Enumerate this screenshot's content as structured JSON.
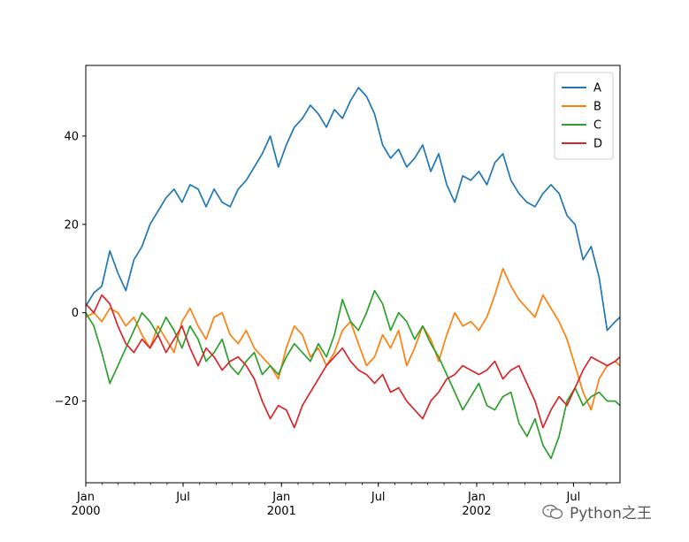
{
  "chart_data": {
    "type": "line",
    "title": "",
    "xlabel": "",
    "ylabel": "",
    "x_range": [
      "2000-01-01",
      "2002-09-26"
    ],
    "ylim": [
      -38.5,
      56
    ],
    "yticks": [
      -20,
      0,
      20,
      40
    ],
    "ytick_labels": [
      "−20",
      "0",
      "20",
      "40"
    ],
    "xticks": [
      {
        "date": "2000-01-01",
        "label": [
          "Jan",
          "2000"
        ]
      },
      {
        "date": "2000-07-01",
        "label": [
          "Jul"
        ]
      },
      {
        "date": "2001-01-01",
        "label": [
          "Jan",
          "2001"
        ]
      },
      {
        "date": "2001-07-01",
        "label": [
          "Jul"
        ]
      },
      {
        "date": "2002-01-01",
        "label": [
          "Jan",
          "2002"
        ]
      },
      {
        "date": "2002-07-01",
        "label": [
          "Jul"
        ]
      }
    ],
    "grid": false,
    "legend_position": "top-right",
    "series": [
      {
        "name": "A",
        "color": "#1f77b4",
        "x": [
          "2000-01-01",
          "2000-01-16",
          "2000-01-31",
          "2000-02-15",
          "2000-03-01",
          "2000-03-16",
          "2000-03-31",
          "2000-04-15",
          "2000-04-30",
          "2000-05-15",
          "2000-05-30",
          "2000-06-14",
          "2000-06-29",
          "2000-07-14",
          "2000-07-29",
          "2000-08-13",
          "2000-08-28",
          "2000-09-12",
          "2000-09-27",
          "2000-10-12",
          "2000-10-27",
          "2000-11-11",
          "2000-11-26",
          "2000-12-11",
          "2000-12-26",
          "2001-01-10",
          "2001-01-25",
          "2001-02-09",
          "2001-02-24",
          "2001-03-11",
          "2001-03-26",
          "2001-04-10",
          "2001-04-25",
          "2001-05-10",
          "2001-05-25",
          "2001-06-09",
          "2001-06-24",
          "2001-07-09",
          "2001-07-24",
          "2001-08-08",
          "2001-08-23",
          "2001-09-07",
          "2001-09-22",
          "2001-10-07",
          "2001-10-22",
          "2001-11-06",
          "2001-11-21",
          "2001-12-06",
          "2001-12-21",
          "2002-01-05",
          "2002-01-20",
          "2002-02-04",
          "2002-02-19",
          "2002-03-06",
          "2002-03-21",
          "2002-04-05",
          "2002-04-20",
          "2002-05-05",
          "2002-05-20",
          "2002-06-04",
          "2002-06-19",
          "2002-07-04",
          "2002-07-19",
          "2002-08-03",
          "2002-08-18",
          "2002-09-02",
          "2002-09-17",
          "2002-09-26"
        ],
        "y": [
          1.5,
          4.5,
          6,
          14,
          9,
          5,
          12,
          15,
          20,
          23,
          26,
          28,
          25,
          29,
          28,
          24,
          28,
          25,
          24,
          28,
          30,
          33,
          36,
          40,
          33,
          38,
          42,
          44,
          47,
          45,
          42,
          46,
          44,
          48,
          51,
          49,
          45,
          38,
          35,
          37,
          33,
          35,
          38,
          32,
          36,
          29,
          25,
          31,
          30,
          32,
          29,
          34,
          36,
          30,
          27,
          25,
          24,
          27,
          29,
          27,
          22,
          20,
          12,
          15,
          8,
          -4,
          -2,
          -1
        ]
      },
      {
        "name": "B",
        "color": "#ff7f0e",
        "x": [
          "2000-01-01",
          "2000-01-16",
          "2000-01-31",
          "2000-02-15",
          "2000-03-01",
          "2000-03-16",
          "2000-03-31",
          "2000-04-15",
          "2000-04-30",
          "2000-05-15",
          "2000-05-30",
          "2000-06-14",
          "2000-06-29",
          "2000-07-14",
          "2000-07-29",
          "2000-08-13",
          "2000-08-28",
          "2000-09-12",
          "2000-09-27",
          "2000-10-12",
          "2000-10-27",
          "2000-11-11",
          "2000-11-26",
          "2000-12-11",
          "2000-12-26",
          "2001-01-10",
          "2001-01-25",
          "2001-02-09",
          "2001-02-24",
          "2001-03-11",
          "2001-03-26",
          "2001-04-10",
          "2001-04-25",
          "2001-05-10",
          "2001-05-25",
          "2001-06-09",
          "2001-06-24",
          "2001-07-09",
          "2001-07-24",
          "2001-08-08",
          "2001-08-23",
          "2001-09-07",
          "2001-09-22",
          "2001-10-07",
          "2001-10-22",
          "2001-11-06",
          "2001-11-21",
          "2001-12-06",
          "2001-12-21",
          "2002-01-05",
          "2002-01-20",
          "2002-02-04",
          "2002-02-19",
          "2002-03-06",
          "2002-03-21",
          "2002-04-05",
          "2002-04-20",
          "2002-05-05",
          "2002-05-20",
          "2002-06-04",
          "2002-06-19",
          "2002-07-04",
          "2002-07-19",
          "2002-08-03",
          "2002-08-18",
          "2002-09-02",
          "2002-09-17",
          "2002-09-26"
        ],
        "y": [
          -1,
          0,
          -2,
          1,
          0,
          -3,
          -1,
          -5,
          -8,
          -3,
          -6,
          -9,
          -2,
          1,
          -3,
          -6,
          -1,
          0,
          -5,
          -7,
          -4,
          -8,
          -10,
          -12,
          -15,
          -8,
          -3,
          -5,
          -10,
          -8,
          -12,
          -9,
          -4,
          -2,
          -7,
          -12,
          -10,
          -5,
          -8,
          -4,
          -12,
          -8,
          -3,
          -6,
          -11,
          -5,
          0,
          -3,
          -2,
          -4,
          -1,
          4,
          10,
          6,
          3,
          1,
          -1,
          4,
          1,
          -2,
          -6,
          -12,
          -18,
          -22,
          -15,
          -12,
          -11,
          -12
        ]
      },
      {
        "name": "C",
        "color": "#2ca02c",
        "x": [
          "2000-01-01",
          "2000-01-16",
          "2000-01-31",
          "2000-02-15",
          "2000-03-01",
          "2000-03-16",
          "2000-03-31",
          "2000-04-15",
          "2000-04-30",
          "2000-05-15",
          "2000-05-30",
          "2000-06-14",
          "2000-06-29",
          "2000-07-14",
          "2000-07-29",
          "2000-08-13",
          "2000-08-28",
          "2000-09-12",
          "2000-09-27",
          "2000-10-12",
          "2000-10-27",
          "2000-11-11",
          "2000-11-26",
          "2000-12-11",
          "2000-12-26",
          "2001-01-10",
          "2001-01-25",
          "2001-02-09",
          "2001-02-24",
          "2001-03-11",
          "2001-03-26",
          "2001-04-10",
          "2001-04-25",
          "2001-05-10",
          "2001-05-25",
          "2001-06-09",
          "2001-06-24",
          "2001-07-09",
          "2001-07-24",
          "2001-08-08",
          "2001-08-23",
          "2001-09-07",
          "2001-09-22",
          "2001-10-07",
          "2001-10-22",
          "2001-11-06",
          "2001-11-21",
          "2001-12-06",
          "2001-12-21",
          "2002-01-05",
          "2002-01-20",
          "2002-02-04",
          "2002-02-19",
          "2002-03-06",
          "2002-03-21",
          "2002-04-05",
          "2002-04-20",
          "2002-05-05",
          "2002-05-20",
          "2002-06-04",
          "2002-06-19",
          "2002-07-04",
          "2002-07-19",
          "2002-08-03",
          "2002-08-18",
          "2002-09-02",
          "2002-09-17",
          "2002-09-26"
        ],
        "y": [
          0,
          -3,
          -9,
          -16,
          -12,
          -8,
          -4,
          0,
          -2,
          -5,
          -1,
          -4,
          -8,
          -3,
          -6,
          -11,
          -9,
          -6,
          -12,
          -14,
          -11,
          -9,
          -14,
          -12,
          -14,
          -10,
          -7,
          -9,
          -11,
          -7,
          -10,
          -5,
          3,
          -2,
          -4,
          0,
          5,
          2,
          -4,
          0,
          -2,
          -6,
          -3,
          -7,
          -10,
          -14,
          -18,
          -22,
          -19,
          -16,
          -21,
          -22,
          -19,
          -18,
          -25,
          -28,
          -24,
          -30,
          -33,
          -28,
          -20,
          -17,
          -21,
          -19,
          -18,
          -20,
          -20,
          -21
        ]
      },
      {
        "name": "D",
        "color": "#d62728",
        "x": [
          "2000-01-01",
          "2000-01-16",
          "2000-01-31",
          "2000-02-15",
          "2000-03-01",
          "2000-03-16",
          "2000-03-31",
          "2000-04-15",
          "2000-04-30",
          "2000-05-15",
          "2000-05-30",
          "2000-06-14",
          "2000-06-29",
          "2000-07-14",
          "2000-07-29",
          "2000-08-13",
          "2000-08-28",
          "2000-09-12",
          "2000-09-27",
          "2000-10-12",
          "2000-10-27",
          "2000-11-11",
          "2000-11-26",
          "2000-12-11",
          "2000-12-26",
          "2001-01-10",
          "2001-01-25",
          "2001-02-09",
          "2001-02-24",
          "2001-03-11",
          "2001-03-26",
          "2001-04-10",
          "2001-04-25",
          "2001-05-10",
          "2001-05-25",
          "2001-06-09",
          "2001-06-24",
          "2001-07-09",
          "2001-07-24",
          "2001-08-08",
          "2001-08-23",
          "2001-09-07",
          "2001-09-22",
          "2001-10-07",
          "2001-10-22",
          "2001-11-06",
          "2001-11-21",
          "2001-12-06",
          "2001-12-21",
          "2002-01-05",
          "2002-01-20",
          "2002-02-04",
          "2002-02-19",
          "2002-03-06",
          "2002-03-21",
          "2002-04-05",
          "2002-04-20",
          "2002-05-05",
          "2002-05-20",
          "2002-06-04",
          "2002-06-19",
          "2002-07-04",
          "2002-07-19",
          "2002-08-03",
          "2002-08-18",
          "2002-09-02",
          "2002-09-17",
          "2002-09-26"
        ],
        "y": [
          2,
          0,
          4,
          2,
          -3,
          -7,
          -9,
          -6,
          -8,
          -5,
          -9,
          -6,
          -3,
          -8,
          -12,
          -8,
          -10,
          -13,
          -11,
          -10,
          -12,
          -15,
          -20,
          -24,
          -21,
          -22,
          -26,
          -21,
          -18,
          -15,
          -12,
          -10,
          -8,
          -11,
          -13,
          -14,
          -16,
          -14,
          -18,
          -17,
          -20,
          -22,
          -24,
          -20,
          -18,
          -15,
          -14,
          -12,
          -13,
          -14,
          -13,
          -11,
          -15,
          -13,
          -12,
          -16,
          -20,
          -26,
          -22,
          -19,
          -21,
          -17,
          -13,
          -10,
          -11,
          -12,
          -11,
          -10
        ]
      }
    ]
  },
  "watermark": {
    "text": "Python之王"
  }
}
